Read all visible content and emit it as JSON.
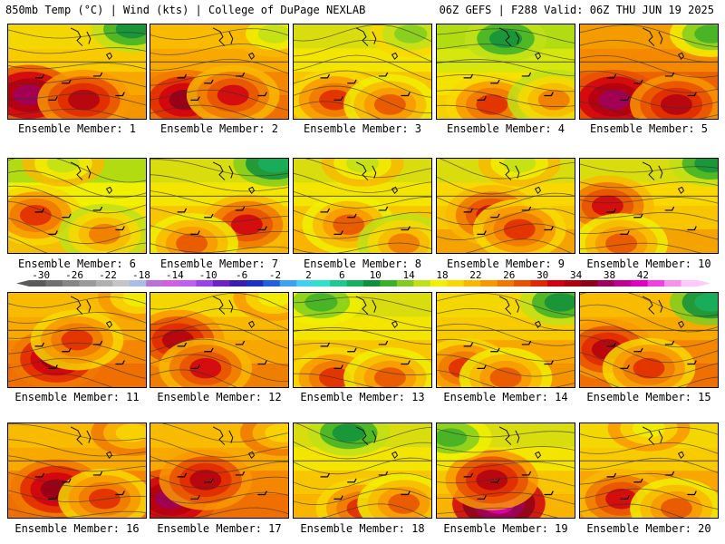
{
  "header": {
    "left": "850mb Temp (°C) | Wind (kts) | College of DuPage NEXLAB",
    "right": "06Z GEFS | F288 Valid: 06Z THU JUN 19 2025"
  },
  "panels": [
    {
      "label": "Ensemble Member: 1",
      "base": 18,
      "hot": [
        [
          0.15,
          0.75,
          34
        ],
        [
          0.55,
          0.8,
          30
        ]
      ],
      "cold": [
        [
          0.9,
          0.05,
          6
        ]
      ]
    },
    {
      "label": "Ensemble Member: 2",
      "base": 20,
      "hot": [
        [
          0.25,
          0.8,
          32
        ],
        [
          0.6,
          0.75,
          28
        ]
      ],
      "cold": [
        [
          0.9,
          0.1,
          12
        ]
      ]
    },
    {
      "label": "Ensemble Member: 3",
      "base": 16,
      "hot": [
        [
          0.3,
          0.8,
          26
        ],
        [
          0.7,
          0.85,
          24
        ]
      ],
      "cold": [
        [
          0.85,
          0.1,
          10
        ]
      ]
    },
    {
      "label": "Ensemble Member: 4",
      "base": 14,
      "hot": [
        [
          0.4,
          0.85,
          26
        ],
        [
          0.85,
          0.8,
          22
        ]
      ],
      "cold": [
        [
          0.5,
          0.15,
          6
        ]
      ]
    },
    {
      "label": "Ensemble Member: 5",
      "base": 22,
      "hot": [
        [
          0.25,
          0.8,
          34
        ],
        [
          0.7,
          0.85,
          30
        ]
      ],
      "cold": [
        [
          0.95,
          0.1,
          8
        ]
      ]
    },
    {
      "label": "Ensemble Member: 6",
      "base": 15,
      "hot": [
        [
          0.2,
          0.6,
          26
        ],
        [
          0.7,
          0.8,
          22
        ]
      ],
      "cold": [
        [
          0.4,
          0.05,
          12
        ]
      ]
    },
    {
      "label": "Ensemble Member: 7",
      "base": 16,
      "hot": [
        [
          0.7,
          0.7,
          28
        ],
        [
          0.3,
          0.9,
          24
        ]
      ],
      "cold": [
        [
          0.9,
          0.05,
          4
        ]
      ]
    },
    {
      "label": "Ensemble Member: 8",
      "base": 16,
      "hot": [
        [
          0.4,
          0.7,
          24
        ],
        [
          0.8,
          0.9,
          22
        ]
      ],
      "cold": [
        [
          0.5,
          0.05,
          12
        ]
      ]
    },
    {
      "label": "Ensemble Member: 9",
      "base": 17,
      "hot": [
        [
          0.4,
          0.6,
          28
        ],
        [
          0.6,
          0.75,
          26
        ]
      ],
      "cold": [
        [
          0.6,
          0.05,
          12
        ]
      ]
    },
    {
      "label": "Ensemble Member: 10",
      "base": 17,
      "hot": [
        [
          0.2,
          0.5,
          28
        ],
        [
          0.3,
          0.9,
          24
        ]
      ],
      "cold": [
        [
          0.95,
          0.05,
          6
        ]
      ]
    },
    {
      "label": "Ensemble Member: 11",
      "base": 20,
      "hot": [
        [
          0.35,
          0.7,
          32
        ],
        [
          0.5,
          0.5,
          26
        ]
      ],
      "cold": [
        [
          0.95,
          0.05,
          14
        ]
      ]
    },
    {
      "label": "Ensemble Member: 12",
      "base": 19,
      "hot": [
        [
          0.2,
          0.5,
          30
        ],
        [
          0.4,
          0.8,
          28
        ]
      ],
      "cold": [
        [
          0.9,
          0.05,
          14
        ]
      ]
    },
    {
      "label": "Ensemble Member: 13",
      "base": 16,
      "hot": [
        [
          0.3,
          0.9,
          26
        ],
        [
          0.7,
          0.9,
          24
        ]
      ],
      "cold": [
        [
          0.2,
          0.1,
          8
        ]
      ]
    },
    {
      "label": "Ensemble Member: 14",
      "base": 18,
      "hot": [
        [
          0.2,
          0.8,
          26
        ],
        [
          0.5,
          0.9,
          24
        ]
      ],
      "cold": [
        [
          0.9,
          0.1,
          6
        ]
      ]
    },
    {
      "label": "Ensemble Member: 15",
      "base": 20,
      "hot": [
        [
          0.2,
          0.6,
          30
        ],
        [
          0.5,
          0.8,
          26
        ]
      ],
      "cold": [
        [
          0.95,
          0.1,
          4
        ]
      ]
    },
    {
      "label": "Ensemble Member: 16",
      "base": 20,
      "hot": [
        [
          0.35,
          0.7,
          32
        ],
        [
          0.7,
          0.8,
          26
        ]
      ],
      "cold": [
        [
          0.9,
          0.1,
          16
        ]
      ]
    },
    {
      "label": "Ensemble Member: 17",
      "base": 20,
      "hot": [
        [
          0.15,
          0.8,
          34
        ],
        [
          0.4,
          0.6,
          30
        ]
      ],
      "cold": [
        [
          0.95,
          0.1,
          16
        ]
      ]
    },
    {
      "label": "Ensemble Member: 18",
      "base": 16,
      "hot": [
        [
          0.5,
          0.9,
          26
        ],
        [
          0.8,
          0.85,
          24
        ]
      ],
      "cold": [
        [
          0.4,
          0.1,
          6
        ]
      ]
    },
    {
      "label": "Ensemble Member: 19",
      "base": 16,
      "hot": [
        [
          0.45,
          0.85,
          38
        ],
        [
          0.4,
          0.6,
          30
        ]
      ],
      "cold": [
        [
          0.1,
          0.15,
          8
        ]
      ]
    },
    {
      "label": "Ensemble Member: 20",
      "base": 18,
      "hot": [
        [
          0.3,
          0.8,
          28
        ],
        [
          0.7,
          0.9,
          24
        ]
      ],
      "cold": [
        [
          0.5,
          0.05,
          14
        ]
      ]
    }
  ],
  "colorbar": {
    "ticks": [
      "-30",
      "-26",
      "-22",
      "-18",
      "-14",
      "-10",
      "-6",
      "-2",
      "2",
      "6",
      "10",
      "14",
      "18",
      "22",
      "26",
      "30",
      "34",
      "38",
      "42"
    ],
    "colors": [
      "#5a5a5a",
      "#707070",
      "#858585",
      "#9a9a9a",
      "#b0b0b0",
      "#c5c5c5",
      "#a8bde8",
      "#bc6fd6",
      "#d060e0",
      "#c060f0",
      "#9c40e8",
      "#7020c8",
      "#3c1cb0",
      "#1c30c8",
      "#2060e0",
      "#40a0f0",
      "#40d0f0",
      "#30e0c8",
      "#20c890",
      "#18b060",
      "#10903c",
      "#3cb028",
      "#80cc20",
      "#c0e018",
      "#f0f000",
      "#f8d800",
      "#f8b800",
      "#f89800",
      "#f07800",
      "#e85000",
      "#e02800",
      "#d00010",
      "#b00010",
      "#900018",
      "#a00060",
      "#c00090",
      "#e000c0",
      "#f040e0",
      "#f890f0",
      "#ffc8ff"
    ]
  }
}
